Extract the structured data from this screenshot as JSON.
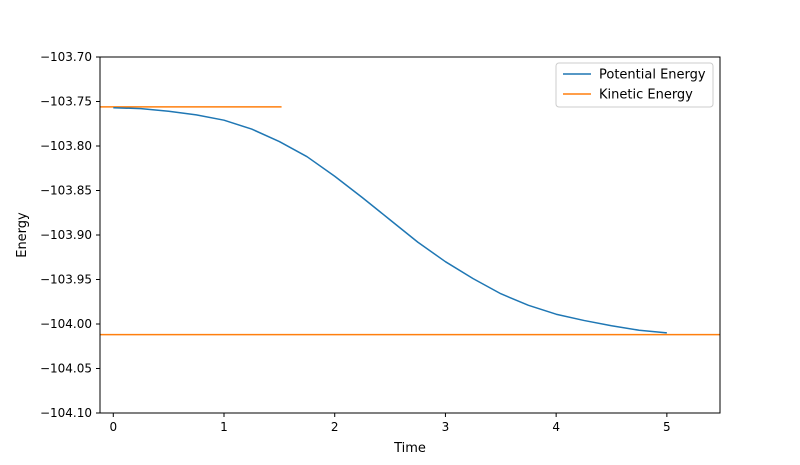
{
  "chart_data": {
    "type": "line",
    "title": "",
    "xlabel": "Time",
    "ylabel": "Energy",
    "xlim": [
      -0.12,
      5.48
    ],
    "ylim": [
      -104.1,
      -103.7
    ],
    "grid": false,
    "legend_position": "top-right",
    "x_ticks": [
      0,
      1,
      2,
      3,
      4,
      5
    ],
    "x_tick_labels": [
      "0",
      "1",
      "2",
      "3",
      "4",
      "5"
    ],
    "y_ticks": [
      -103.7,
      -103.75,
      -103.8,
      -103.85,
      -103.9,
      -103.95,
      -104.0,
      -104.05,
      -104.1
    ],
    "y_tick_labels": [
      "−103.70",
      "−103.75",
      "−103.80",
      "−103.85",
      "−103.90",
      "−103.95",
      "−104.00",
      "−104.05",
      "−104.10"
    ],
    "series": [
      {
        "name": "Potential Energy",
        "color": "#1f77b4",
        "x": [
          0,
          0.25,
          0.5,
          0.75,
          1.0,
          1.25,
          1.5,
          1.75,
          2.0,
          2.25,
          2.5,
          2.75,
          3.0,
          3.25,
          3.5,
          3.75,
          4.0,
          4.25,
          4.5,
          4.75,
          5.0
        ],
        "y": [
          -103.757,
          -103.758,
          -103.761,
          -103.765,
          -103.771,
          -103.781,
          -103.795,
          -103.812,
          -103.834,
          -103.858,
          -103.883,
          -103.908,
          -103.93,
          -103.949,
          -103.966,
          -103.979,
          -103.989,
          -103.996,
          -104.002,
          -104.007,
          -104.01
        ]
      },
      {
        "name": "Kinetic Energy",
        "color": "#ff7f0e",
        "segments": [
          {
            "x": [
              -0.12,
              1.52
            ],
            "y": [
              -103.756,
              -103.756
            ]
          },
          {
            "x": [
              -0.12,
              5.48
            ],
            "y": [
              -104.012,
              -104.012
            ]
          }
        ]
      }
    ]
  }
}
